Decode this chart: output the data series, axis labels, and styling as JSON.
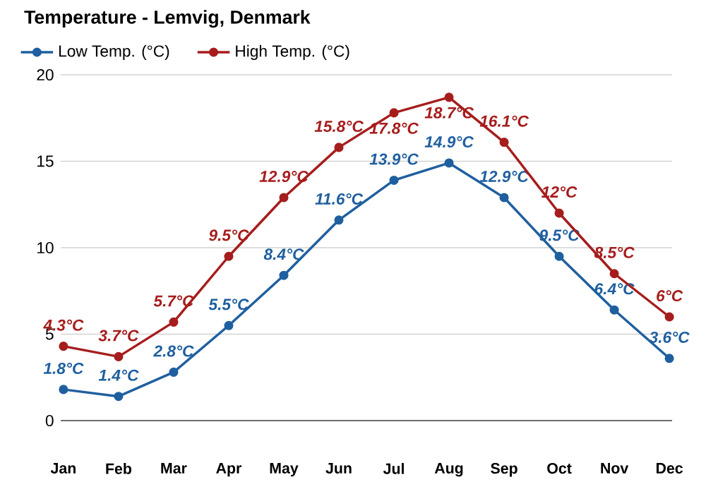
{
  "chart_data": {
    "type": "line",
    "title": "Temperature - Lemvig, Denmark",
    "categories": [
      "Jan",
      "Feb",
      "Mar",
      "Apr",
      "May",
      "Jun",
      "Jul",
      "Aug",
      "Sep",
      "Oct",
      "Nov",
      "Dec"
    ],
    "series": [
      {
        "name": "Low Temp. (°C)",
        "color": "#1f5f9f",
        "values": [
          1.8,
          1.4,
          2.8,
          5.5,
          8.4,
          11.6,
          13.9,
          14.9,
          12.9,
          9.5,
          6.4,
          3.6
        ],
        "value_labels": [
          "1.8°C",
          "1.4°C",
          "2.8°C",
          "5.5°C",
          "8.4°C",
          "11.6°C",
          "13.9°C",
          "14.9°C",
          "12.9°C",
          "9.5°C",
          "6.4°C",
          "3.6°C"
        ]
      },
      {
        "name": "High Temp. (°C)",
        "color": "#a61d1d",
        "values": [
          4.3,
          3.7,
          5.7,
          9.5,
          12.9,
          15.8,
          17.8,
          18.7,
          16.1,
          12,
          8.5,
          6
        ],
        "value_labels": [
          "4.3°C",
          "3.7°C",
          "5.7°C",
          "9.5°C",
          "12.9°C",
          "15.8°C",
          "17.8°C",
          "18.7°C",
          "16.1°C",
          "12°C",
          "8.5°C",
          "6°C"
        ]
      }
    ],
    "ylim": [
      0,
      20
    ],
    "yticks": [
      0,
      5,
      10,
      15,
      20
    ],
    "grid": "y",
    "legend": "top left",
    "marker": "circle",
    "line_style": "solid"
  }
}
